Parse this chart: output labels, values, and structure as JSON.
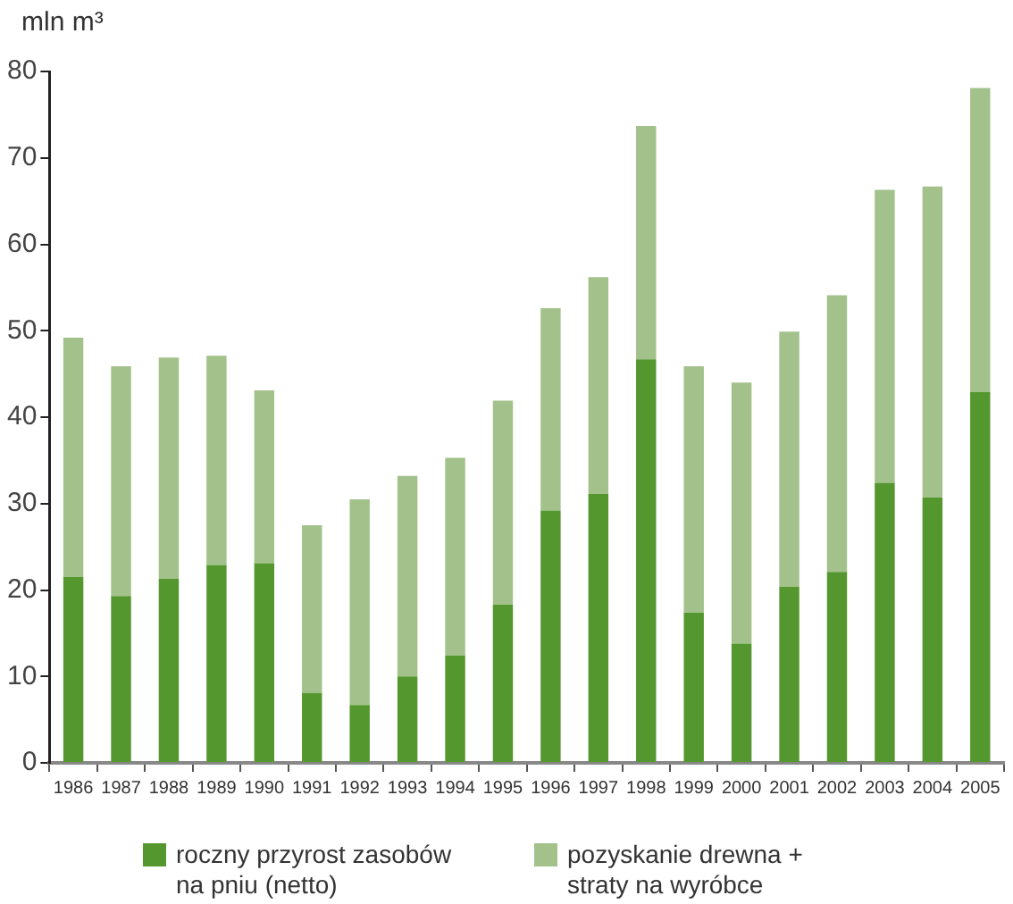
{
  "chart_data": {
    "type": "bar",
    "ylabel": "mln m³",
    "stacked": true,
    "grid": false,
    "legend": "bottom",
    "categories": [
      "1986",
      "1987",
      "1988",
      "1989",
      "1990",
      "1991",
      "1992",
      "1993",
      "1994",
      "1995",
      "1996",
      "1997",
      "1998",
      "1999",
      "2000",
      "2001",
      "2002",
      "2003",
      "2004",
      "2005"
    ],
    "ylim": [
      0,
      80
    ],
    "yticks": [
      0,
      10,
      20,
      30,
      40,
      50,
      60,
      70,
      80
    ],
    "series": [
      {
        "name": "roczny przyrost zasobów na pniu (netto)",
        "color": "#55972f",
        "values": [
          21.5,
          19.3,
          21.3,
          22.9,
          23.1,
          8.1,
          6.7,
          10.0,
          12.4,
          18.3,
          29.2,
          31.1,
          46.7,
          17.4,
          13.8,
          20.4,
          22.1,
          32.4,
          30.7,
          42.9
        ]
      },
      {
        "name": "pozyskanie drewna + straty na wyróbce",
        "color": "#a3c28b",
        "values": [
          27.7,
          26.6,
          25.6,
          24.2,
          20.0,
          19.4,
          23.8,
          23.2,
          22.9,
          23.6,
          23.4,
          25.1,
          27.0,
          28.5,
          30.2,
          29.5,
          32.0,
          33.9,
          36.0,
          35.2
        ]
      }
    ]
  }
}
